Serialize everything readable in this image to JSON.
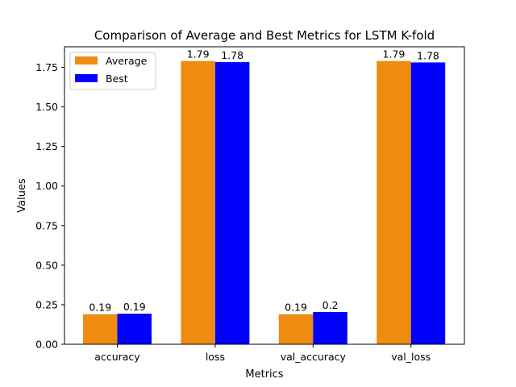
{
  "chart_data": {
    "type": "bar",
    "title": "Comparison of Average and Best Metrics for LSTM K-fold",
    "xlabel": "Metrics",
    "ylabel": "Values",
    "categories": [
      "accuracy",
      "loss",
      "val_accuracy",
      "val_loss"
    ],
    "series": [
      {
        "name": "Average",
        "color": "#ee8b10",
        "values": [
          0.19,
          1.79,
          0.19,
          1.79
        ],
        "labels": [
          "0.19",
          "1.79",
          "0.19",
          "1.79"
        ]
      },
      {
        "name": "Best",
        "color": "#0000ff",
        "values": [
          0.193,
          1.783,
          0.204,
          1.781
        ],
        "labels": [
          "0.19",
          "1.78",
          "0.2",
          "1.78"
        ]
      }
    ],
    "ylim": [
      0,
      1.88
    ],
    "yticks": [
      "0.00",
      "0.25",
      "0.50",
      "0.75",
      "1.00",
      "1.25",
      "1.50",
      "1.75"
    ],
    "ytick_values": [
      0,
      0.25,
      0.5,
      0.75,
      1.0,
      1.25,
      1.5,
      1.75
    ],
    "grid": false,
    "legend_position": "top-left"
  }
}
